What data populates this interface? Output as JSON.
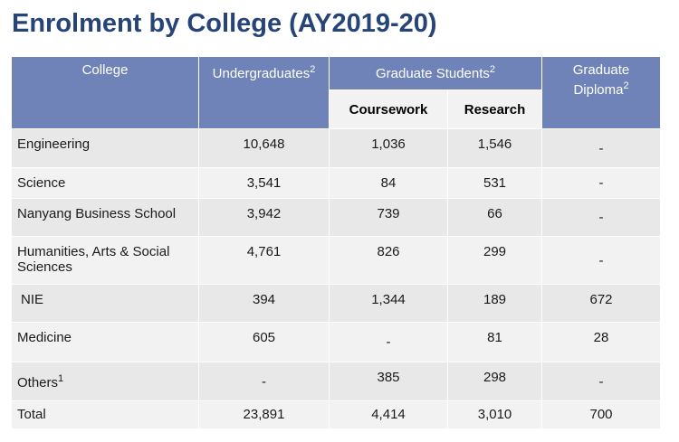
{
  "title": "Enrolment by College (AY2019-20)",
  "headers": {
    "college": "College",
    "undergraduates": "Undergraduates",
    "undergraduates_sup": "2",
    "graduate_students": "Graduate Students",
    "graduate_students_sup": "2",
    "coursework": "Coursework",
    "research": "Research",
    "graduate_diploma_line1": "Graduate",
    "graduate_diploma_line2": "Diploma",
    "graduate_diploma_sup": "2"
  },
  "rows": [
    {
      "college": "Engineering",
      "undergraduates": "10,648",
      "coursework": "1,036",
      "research": "1,546",
      "diploma": "-"
    },
    {
      "college": "Science",
      "undergraduates": "3,541",
      "coursework": "84",
      "research": "531",
      "diploma": "-"
    },
    {
      "college": "Nanyang Business School",
      "undergraduates": "3,942",
      "coursework": "739",
      "research": "66",
      "diploma": "-"
    },
    {
      "college": "Humanities, Arts & Social Sciences",
      "undergraduates": "4,761",
      "coursework": "826",
      "research": "299",
      "diploma": "-"
    },
    {
      "college": "NIE",
      "undergraduates": "394",
      "coursework": "1,344",
      "research": "189",
      "diploma": "672"
    },
    {
      "college": "Medicine",
      "undergraduates": "605",
      "coursework": "-",
      "research": "81",
      "diploma": "28"
    },
    {
      "college": "Others",
      "college_sup": "1",
      "undergraduates": "-",
      "coursework": "385",
      "research": "298",
      "diploma": "-"
    },
    {
      "college": "Total",
      "undergraduates": "23,891",
      "coursework": "4,414",
      "research": "3,010",
      "diploma": "700"
    }
  ],
  "colors": {
    "title": "#264478",
    "header_bg": "#6f83b8",
    "row_dark": "#e8e8e8",
    "row_light": "#f2f2f2"
  }
}
